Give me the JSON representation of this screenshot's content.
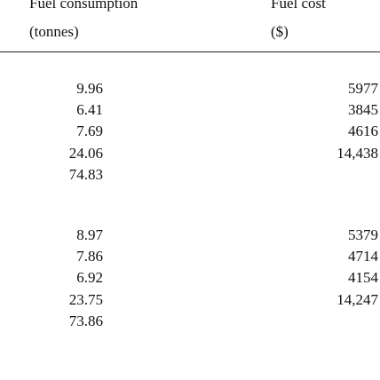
{
  "header": {
    "col1": [
      "Fuel consumption",
      "(tonnes)"
    ],
    "col2": [
      "Fuel cost",
      "($)"
    ]
  },
  "table": {
    "groups": [
      {
        "rows": [
          [
            "9.96",
            "5977"
          ],
          [
            "6.41",
            "3845"
          ],
          [
            "7.69",
            "4616"
          ],
          [
            "24.06",
            "14,438"
          ],
          [
            "74.83"
          ]
        ]
      },
      {
        "rows": [
          [
            "8.97",
            "5379"
          ],
          [
            "7.86",
            "4714"
          ],
          [
            "6.92",
            "4154"
          ],
          [
            "23.75",
            "14,247"
          ],
          [
            "73.86"
          ]
        ]
      }
    ]
  }
}
